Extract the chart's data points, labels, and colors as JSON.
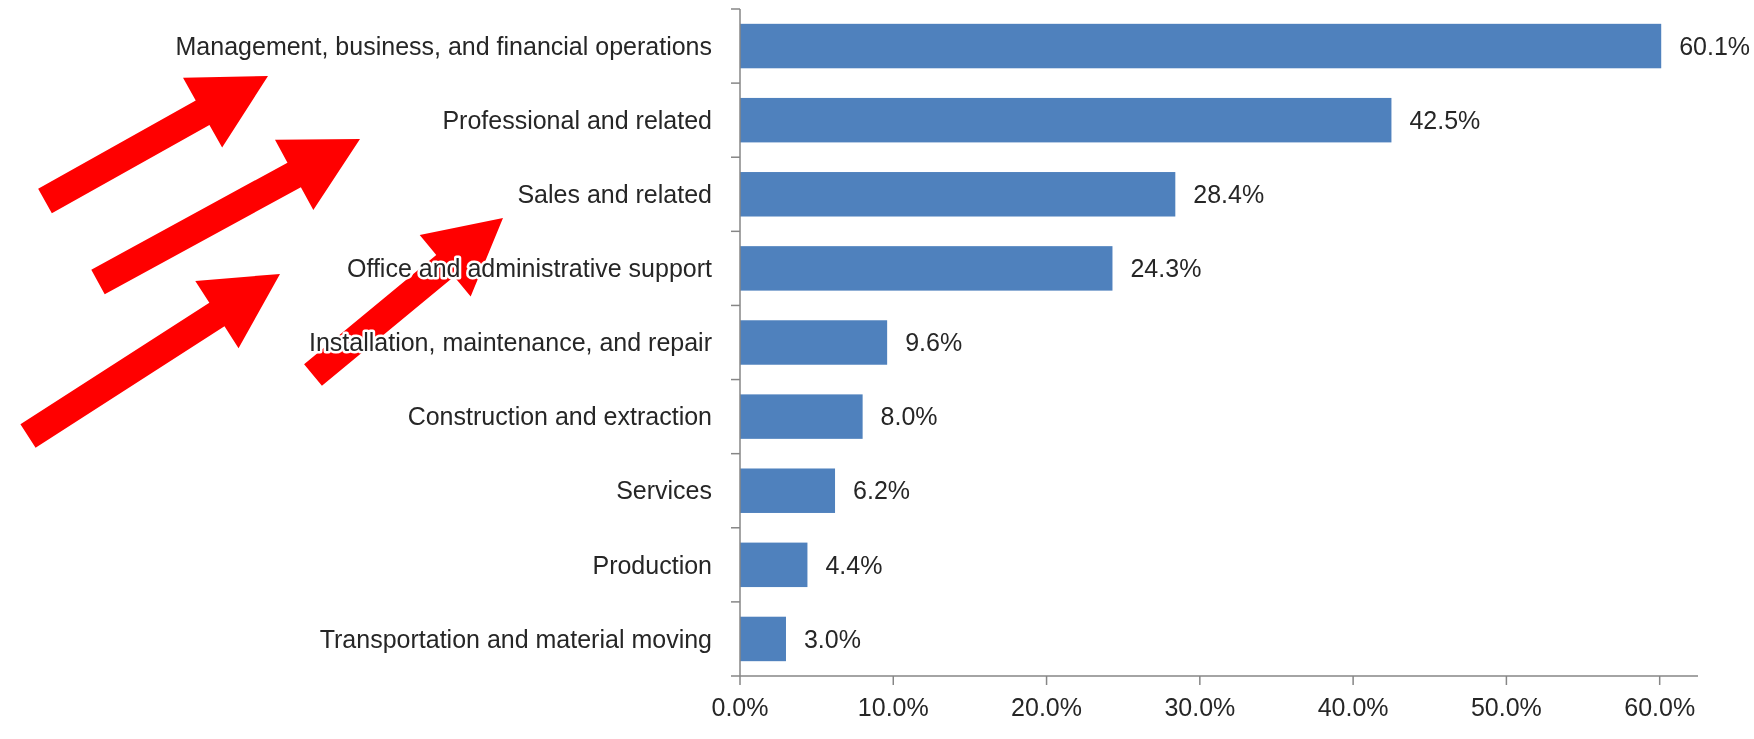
{
  "chart_data": {
    "type": "bar",
    "orientation": "horizontal",
    "categories": [
      "Management, business, and financial operations",
      "Professional and related",
      "Sales and related",
      "Office and administrative support",
      "Installation, maintenance, and repair",
      "Construction and extraction",
      "Services",
      "Production",
      "Transportation and material moving"
    ],
    "values": [
      60.1,
      42.5,
      28.4,
      24.3,
      9.6,
      8.0,
      6.2,
      4.4,
      3.0
    ],
    "value_labels": [
      "60.1%",
      "42.5%",
      "28.4%",
      "24.3%",
      "9.6%",
      "8.0%",
      "6.2%",
      "4.4%",
      "3.0%"
    ],
    "color": "#4f81bd",
    "xlim": [
      0,
      62.5
    ],
    "xticks": [
      {
        "value": 0,
        "label": "0.0%"
      },
      {
        "value": 10,
        "label": "10.0%"
      },
      {
        "value": 20,
        "label": "20.0%"
      },
      {
        "value": 30,
        "label": "30.0%"
      },
      {
        "value": 40,
        "label": "40.0%"
      },
      {
        "value": 50,
        "label": "50.0%"
      },
      {
        "value": 60,
        "label": "60.0%"
      }
    ],
    "grid": false
  }
}
